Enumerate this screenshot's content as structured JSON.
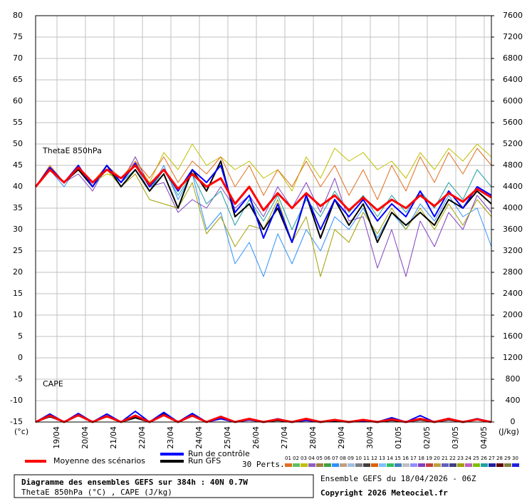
{
  "chart_data": {
    "type": "line",
    "title": "Diagramme des ensembles GEFS sur 384h : 40N 0.7W",
    "subtitle": "ThetaE 850hPa (°C) , CAPE (J/kg)",
    "run_label": "Ensemble GEFS du 18/04/2026 - 06Z",
    "copyright": "Copyright 2026 Meteociel.fr",
    "ylabel": "(°c)",
    "y2label": "(J/kg)",
    "annotations": [
      "ThetaE 850hPa",
      "CAPE"
    ],
    "x": [
      0,
      12,
      24,
      36,
      48,
      60,
      72,
      84,
      96,
      108,
      120,
      132,
      144,
      156,
      168,
      180,
      192,
      204,
      216,
      228,
      240,
      252,
      264,
      276,
      288,
      300,
      312,
      324,
      336,
      348,
      360,
      372,
      384
    ],
    "xlim": [
      0,
      384
    ],
    "xticks": [
      {
        "value": 18,
        "label": "19/04"
      },
      {
        "value": 42,
        "label": "20/04"
      },
      {
        "value": 66,
        "label": "21/04"
      },
      {
        "value": 90,
        "label": "22/04"
      },
      {
        "value": 114,
        "label": "23/04"
      },
      {
        "value": 138,
        "label": "24/04"
      },
      {
        "value": 162,
        "label": "25/04"
      },
      {
        "value": 186,
        "label": "26/04"
      },
      {
        "value": 210,
        "label": "27/04"
      },
      {
        "value": 234,
        "label": "28/04"
      },
      {
        "value": 258,
        "label": "29/04"
      },
      {
        "value": 282,
        "label": "30/04"
      },
      {
        "value": 306,
        "label": "01/05"
      },
      {
        "value": 330,
        "label": "02/05"
      },
      {
        "value": 354,
        "label": "03/05"
      },
      {
        "value": 378,
        "label": "04/05"
      }
    ],
    "ylim": [
      -15,
      80
    ],
    "yticks": [
      -15,
      -10,
      -5,
      0,
      5,
      10,
      15,
      20,
      25,
      30,
      35,
      40,
      45,
      50,
      55,
      60,
      65,
      70,
      75,
      80
    ],
    "y2lim": [
      0,
      7600
    ],
    "y2ticks": [
      0,
      400,
      800,
      1200,
      1600,
      2000,
      2400,
      2800,
      3200,
      3600,
      4000,
      4400,
      4800,
      5200,
      5600,
      6000,
      6400,
      6800,
      7200,
      7600
    ],
    "grid": true,
    "series": [
      {
        "name": "Moyenne des scénarios",
        "color": "#ff0000",
        "values": [
          40,
          44,
          41,
          44.5,
          41,
          44,
          42,
          45,
          40.5,
          44,
          39.5,
          43,
          40,
          42,
          36,
          40,
          34.5,
          38.5,
          35,
          38.5,
          35.5,
          38,
          34.5,
          37.5,
          34.5,
          37,
          35,
          38,
          35.5,
          38.5,
          36.5,
          39.5,
          37.5
        ]
      },
      {
        "name": "Run de contrôle",
        "color": "#0000ff",
        "values": [
          40,
          44.5,
          41,
          45,
          40,
          45,
          41,
          45.5,
          40,
          44,
          39,
          44,
          41,
          45,
          34,
          38,
          28,
          36,
          27,
          38,
          30,
          37,
          33,
          37,
          32,
          36,
          33,
          39,
          33,
          39,
          35,
          40,
          38
        ]
      },
      {
        "name": "Run GFS",
        "color": "#000000",
        "values": [
          40,
          44,
          41,
          44,
          40,
          45,
          40,
          44,
          39,
          43,
          35,
          44,
          39,
          46,
          33,
          36,
          30,
          35,
          27,
          38,
          28,
          37,
          31,
          36,
          27,
          34,
          31,
          34,
          31,
          37,
          35,
          39,
          36
        ]
      },
      {
        "name": "03",
        "color": "#c0c000",
        "values": [
          40,
          45,
          41,
          44,
          41,
          43,
          42,
          46,
          41,
          48,
          44,
          50,
          45,
          47,
          44,
          46,
          42,
          44,
          39,
          47,
          42,
          49,
          46,
          48,
          44,
          46,
          42,
          48,
          44,
          49,
          46,
          50,
          47
        ]
      },
      {
        "name": "07",
        "color": "#3090ff",
        "values": [
          40,
          44,
          40,
          45,
          40,
          44,
          41,
          45,
          39,
          45,
          37,
          43,
          30,
          34,
          22,
          27,
          19,
          29,
          22,
          30,
          25,
          33,
          30,
          35,
          28,
          34,
          30,
          36,
          32,
          38,
          33,
          35,
          26
        ]
      },
      {
        "name": "18",
        "color": "#8040c0",
        "values": [
          40,
          44,
          41,
          43,
          39,
          45,
          41,
          47,
          40,
          41,
          34,
          37,
          35,
          40,
          35,
          38,
          33,
          40,
          35,
          41,
          34,
          42,
          32,
          33,
          21,
          30,
          19,
          32,
          26,
          34,
          30,
          38,
          34
        ]
      },
      {
        "name": "23",
        "color": "#a0a000",
        "values": [
          40,
          44,
          41,
          44,
          40,
          44,
          40,
          43,
          37,
          36,
          35,
          41,
          29,
          33,
          26,
          31,
          30,
          37,
          27,
          33,
          19,
          30,
          27,
          34,
          29,
          35,
          30,
          35,
          30,
          36,
          31,
          37,
          33
        ]
      },
      {
        "name": "01",
        "color": "#e07020",
        "values": [
          40,
          45,
          41,
          44,
          41,
          45,
          42,
          46,
          42,
          47,
          41,
          46,
          43,
          47,
          40,
          45,
          38,
          44,
          40,
          46,
          40,
          45,
          38,
          44,
          37,
          45,
          39,
          47,
          41,
          48,
          43,
          49,
          45
        ]
      },
      {
        "name": "26",
        "color": "#20a0a0",
        "values": [
          40,
          44,
          41,
          44,
          40,
          44,
          41,
          44,
          39,
          44,
          38,
          43,
          36,
          39,
          31,
          37,
          32,
          38,
          30,
          37,
          33,
          39,
          34,
          38,
          33,
          38,
          34,
          39,
          35,
          41,
          37,
          44,
          40
        ]
      },
      {
        "name": "Moyenne des scénarios",
        "color": "#ff0000",
        "axis": "y2",
        "values": [
          0,
          120,
          0,
          130,
          0,
          110,
          0,
          120,
          0,
          130,
          0,
          120,
          0,
          100,
          0,
          60,
          0,
          50,
          0,
          60,
          0,
          40,
          0,
          40,
          0,
          50,
          0,
          60,
          0,
          60,
          0,
          50,
          0
        ]
      },
      {
        "name": "Run de contrôle",
        "color": "#0000ff",
        "axis": "y2",
        "values": [
          0,
          150,
          0,
          160,
          0,
          150,
          0,
          200,
          0,
          180,
          0,
          160,
          0,
          60,
          0,
          40,
          0,
          60,
          0,
          30,
          0,
          30,
          0,
          20,
          0,
          80,
          0,
          120,
          0,
          70,
          0,
          60,
          0
        ]
      },
      {
        "name": "Run GFS",
        "color": "#000000",
        "axis": "y2",
        "values": [
          0,
          100,
          0,
          120,
          0,
          100,
          0,
          80,
          0,
          150,
          0,
          150,
          0,
          80,
          0,
          40,
          0,
          30,
          0,
          40,
          0,
          20,
          0,
          30,
          0,
          30,
          0,
          40,
          0,
          40,
          0,
          60,
          0
        ]
      }
    ],
    "perturbations": {
      "label": "30 Perts.",
      "names": [
        "01",
        "02",
        "03",
        "04",
        "05",
        "06",
        "07",
        "08",
        "09",
        "10",
        "11",
        "12",
        "13",
        "14",
        "15",
        "16",
        "17",
        "18",
        "19",
        "20",
        "21",
        "22",
        "23",
        "24",
        "25",
        "26",
        "27",
        "28",
        "29",
        "30"
      ],
      "colors": [
        "#e07020",
        "#60c060",
        "#c0c000",
        "#9060c0",
        "#a08040",
        "#40a040",
        "#3090ff",
        "#c0a080",
        "#a0c0e0",
        "#808080",
        "#404040",
        "#e06000",
        "#80c0ff",
        "#30c060",
        "#4080c0",
        "#c0c0c0",
        "#9090ff",
        "#8040c0",
        "#c04040",
        "#c0a040",
        "#6060c0",
        "#404080",
        "#a0a000",
        "#c060c0",
        "#80c000",
        "#20a0a0",
        "#2020a0",
        "#600000",
        "#808040",
        "#2020e0"
      ]
    }
  }
}
